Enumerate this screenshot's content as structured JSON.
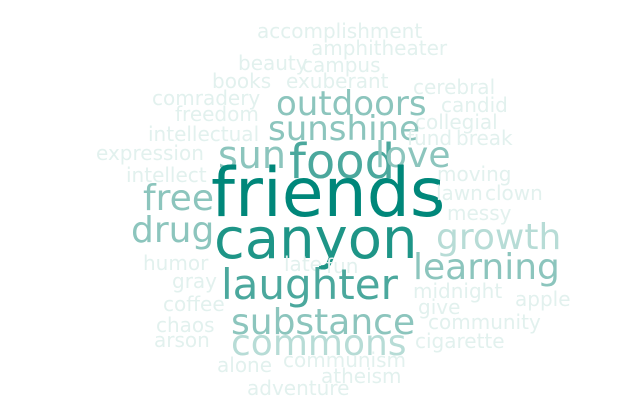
{
  "cloud": {
    "colors": {
      "strongest": "#00877A",
      "strong": "#1E9587",
      "medium": "#4BA89D",
      "light": "#8CC5BD",
      "lighter": "#B7DCD6",
      "faint": "#E2F1EE"
    },
    "words": [
      {
        "text": "accomplishment",
        "weight": 1
      },
      {
        "text": "amphitheater",
        "weight": 1
      },
      {
        "text": "beauty",
        "weight": 1
      },
      {
        "text": "campus",
        "weight": 1
      },
      {
        "text": "books",
        "weight": 1
      },
      {
        "text": "exuberant",
        "weight": 1
      },
      {
        "text": "cerebral",
        "weight": 1
      },
      {
        "text": "comradery",
        "weight": 1
      },
      {
        "text": "outdoors",
        "weight": 4
      },
      {
        "text": "candid",
        "weight": 1
      },
      {
        "text": "freedom",
        "weight": 1
      },
      {
        "text": "collegial",
        "weight": 1
      },
      {
        "text": "intellectual",
        "weight": 1
      },
      {
        "text": "sunshine",
        "weight": 4
      },
      {
        "text": "fund",
        "weight": 1
      },
      {
        "text": "break",
        "weight": 1
      },
      {
        "text": "expression",
        "weight": 1
      },
      {
        "text": "sun",
        "weight": 4
      },
      {
        "text": "food",
        "weight": 5
      },
      {
        "text": "love",
        "weight": 4
      },
      {
        "text": "intellect",
        "weight": 1
      },
      {
        "text": "moving",
        "weight": 1
      },
      {
        "text": "free",
        "weight": 4
      },
      {
        "text": "friends",
        "weight": 10
      },
      {
        "text": "lawn",
        "weight": 1
      },
      {
        "text": "clown",
        "weight": 1
      },
      {
        "text": "messy",
        "weight": 1
      },
      {
        "text": "drug",
        "weight": 4
      },
      {
        "text": "canyon",
        "weight": 8
      },
      {
        "text": "growth",
        "weight": 4
      },
      {
        "text": "humor",
        "weight": 1
      },
      {
        "text": "late",
        "weight": 1
      },
      {
        "text": "fun",
        "weight": 1
      },
      {
        "text": "learning",
        "weight": 4
      },
      {
        "text": "gray",
        "weight": 1
      },
      {
        "text": "laughter",
        "weight": 5
      },
      {
        "text": "midnight",
        "weight": 1
      },
      {
        "text": "apple",
        "weight": 1
      },
      {
        "text": "coffee",
        "weight": 1
      },
      {
        "text": "give",
        "weight": 1
      },
      {
        "text": "substance",
        "weight": 4
      },
      {
        "text": "community",
        "weight": 1
      },
      {
        "text": "chaos",
        "weight": 1
      },
      {
        "text": "arson",
        "weight": 1
      },
      {
        "text": "commons",
        "weight": 4
      },
      {
        "text": "cigarette",
        "weight": 1
      },
      {
        "text": "alone",
        "weight": 1
      },
      {
        "text": "communism",
        "weight": 1
      },
      {
        "text": "atheism",
        "weight": 1
      },
      {
        "text": "adventure",
        "weight": 1
      }
    ]
  }
}
